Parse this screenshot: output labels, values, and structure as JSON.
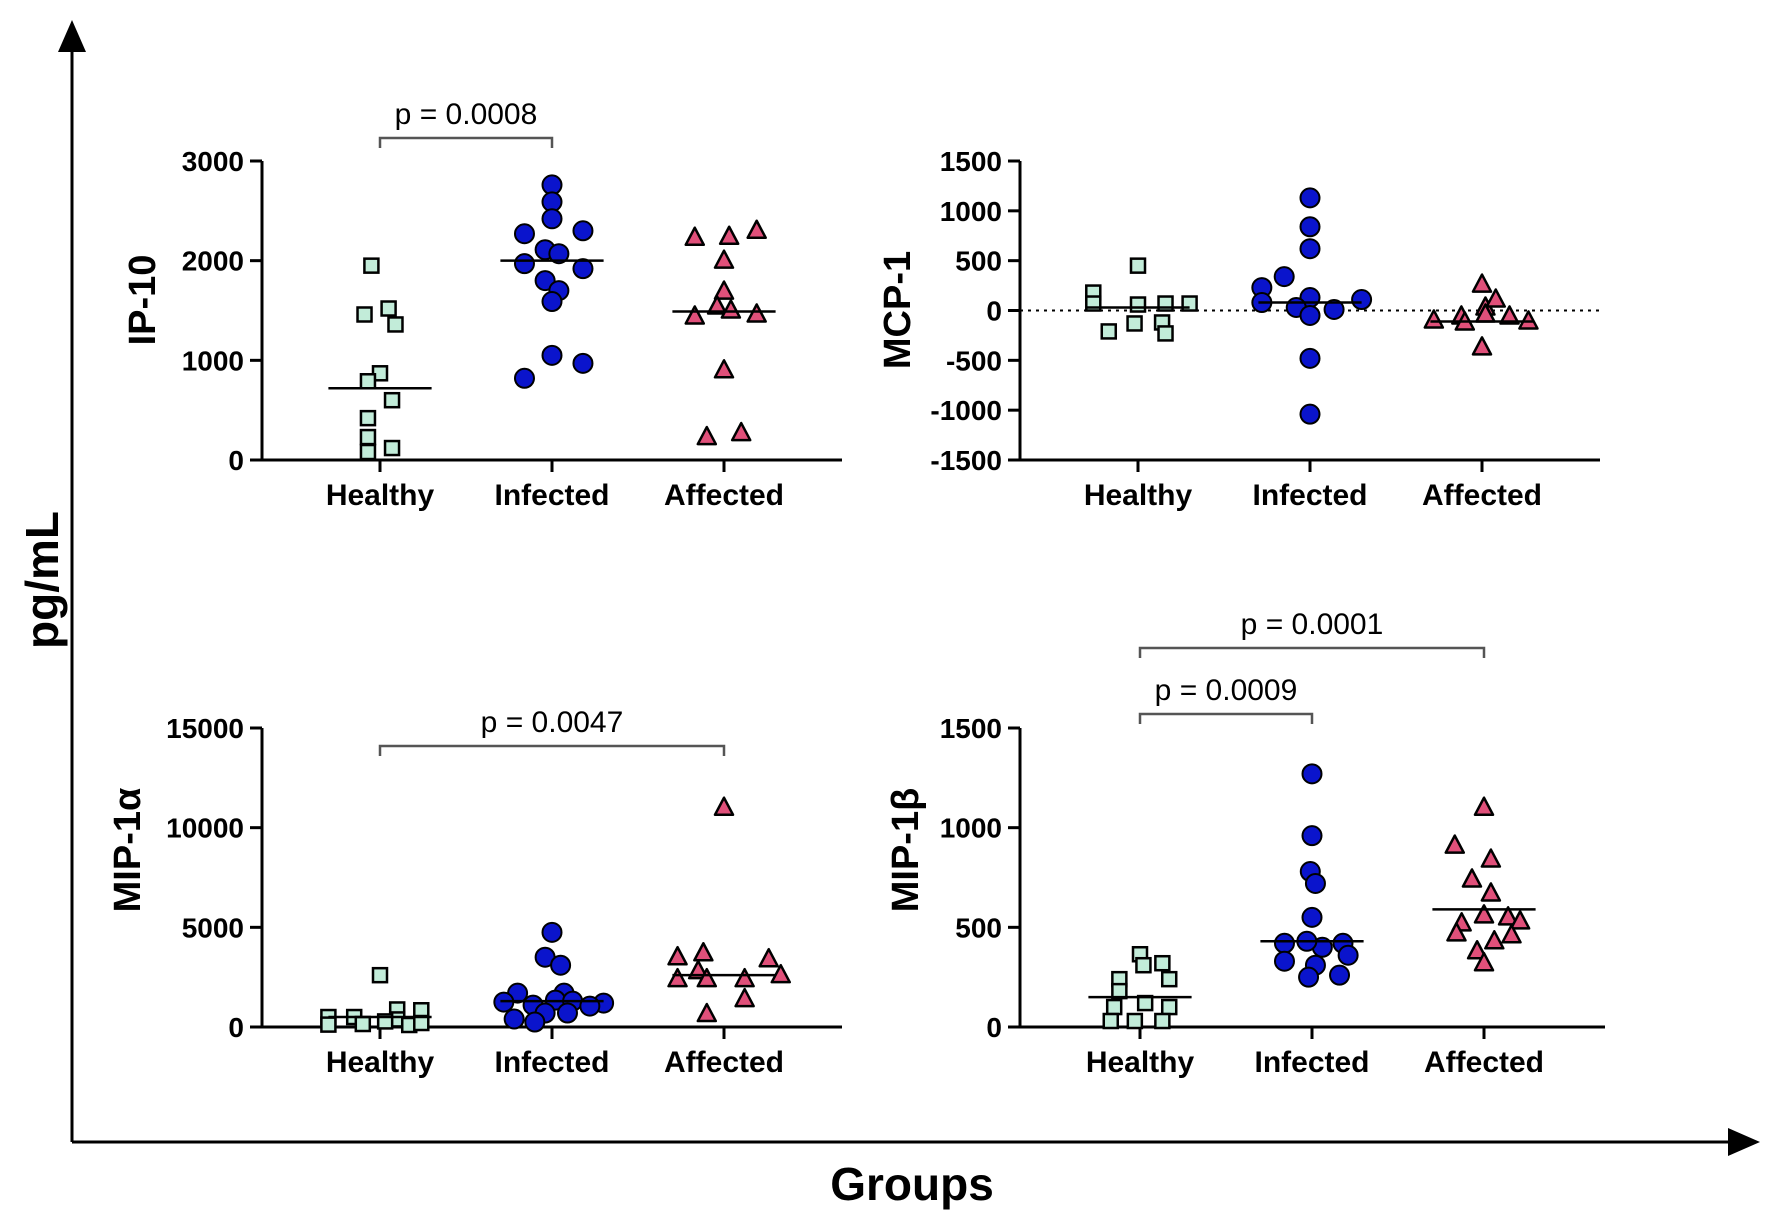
{
  "figure": {
    "ylabel": "pg/mL",
    "xlabel": "Groups"
  },
  "colors": {
    "healthy": "#c2ecd9",
    "infected": "#0a14cc",
    "affected": "#e0507a",
    "axis": "#000000",
    "bracket": "#555555"
  },
  "chart_data": [
    {
      "type": "scatter",
      "title": "",
      "ylabel": "IP-10",
      "xlabel": "",
      "categories": [
        "Healthy",
        "Infected",
        "Affected"
      ],
      "ylim": [
        0,
        3000
      ],
      "yticks": [
        0,
        1000,
        2000,
        3000
      ],
      "zero_line": false,
      "series": [
        {
          "name": "Healthy",
          "marker": "square",
          "points": [
            [
              -0.05,
              1950
            ],
            [
              -0.09,
              1460
            ],
            [
              0.05,
              1520
            ],
            [
              0.09,
              1360
            ],
            [
              0,
              870
            ],
            [
              -0.07,
              790
            ],
            [
              0.07,
              600
            ],
            [
              -0.07,
              420
            ],
            [
              -0.07,
              230
            ],
            [
              -0.07,
              80
            ],
            [
              0.07,
              120
            ]
          ],
          "median": 720
        },
        {
          "name": "Infected",
          "marker": "circle",
          "points": [
            [
              0,
              2760
            ],
            [
              0,
              2590
            ],
            [
              -0.16,
              2270
            ],
            [
              0.18,
              2300
            ],
            [
              0,
              2420
            ],
            [
              -0.04,
              2110
            ],
            [
              0.04,
              2070
            ],
            [
              -0.16,
              1970
            ],
            [
              0.18,
              1920
            ],
            [
              -0.04,
              1800
            ],
            [
              0.04,
              1700
            ],
            [
              0,
              1590
            ],
            [
              0,
              1050
            ],
            [
              -0.16,
              820
            ],
            [
              0.18,
              970
            ]
          ],
          "median": 2000
        },
        {
          "name": "Affected",
          "marker": "triangle",
          "points": [
            [
              -0.17,
              2230
            ],
            [
              0.03,
              2240
            ],
            [
              0.19,
              2300
            ],
            [
              0,
              2000
            ],
            [
              -0.17,
              1440
            ],
            [
              0.19,
              1460
            ],
            [
              0,
              1690
            ],
            [
              -0.04,
              1540
            ],
            [
              0.04,
              1500
            ],
            [
              0,
              900
            ],
            [
              -0.1,
              230
            ],
            [
              0.1,
              270
            ]
          ],
          "median": 1490
        }
      ],
      "annotations": [
        {
          "from": 0,
          "to": 1,
          "text": "p = 0.0008"
        }
      ]
    },
    {
      "type": "scatter",
      "title": "",
      "ylabel": "MCP-1",
      "xlabel": "",
      "categories": [
        "Healthy",
        "Infected",
        "Affected"
      ],
      "ylim": [
        -1500,
        1500
      ],
      "yticks": [
        -1500,
        -1000,
        -500,
        0,
        500,
        1000,
        1500
      ],
      "zero_line": true,
      "series": [
        {
          "name": "Healthy",
          "marker": "square",
          "points": [
            [
              0,
              450
            ],
            [
              -0.26,
              180
            ],
            [
              -0.26,
              70
            ],
            [
              -0.17,
              -210
            ],
            [
              0.16,
              70
            ],
            [
              0.3,
              70
            ],
            [
              0,
              60
            ],
            [
              0.14,
              -120
            ],
            [
              -0.02,
              -130
            ],
            [
              0.16,
              -230
            ]
          ],
          "median": 30
        },
        {
          "name": "Infected",
          "marker": "circle",
          "points": [
            [
              0,
              1130
            ],
            [
              0,
              840
            ],
            [
              0,
              620
            ],
            [
              -0.15,
              340
            ],
            [
              -0.28,
              230
            ],
            [
              0.3,
              110
            ],
            [
              -0.28,
              80
            ],
            [
              0,
              130
            ],
            [
              -0.08,
              30
            ],
            [
              0.14,
              10
            ],
            [
              0,
              -50
            ],
            [
              0,
              -480
            ],
            [
              0,
              -1040
            ]
          ],
          "median": 80
        },
        {
          "name": "Affected",
          "marker": "triangle",
          "points": [
            [
              0,
              260
            ],
            [
              -0.12,
              -60
            ],
            [
              -0.28,
              -100
            ],
            [
              0.02,
              30
            ],
            [
              0.02,
              -40
            ],
            [
              0.16,
              -60
            ],
            [
              0.08,
              110
            ],
            [
              -0.1,
              -120
            ],
            [
              0.27,
              -110
            ],
            [
              0,
              -370
            ]
          ],
          "median": -110
        }
      ],
      "annotations": []
    },
    {
      "type": "scatter",
      "title": "",
      "ylabel": "MIP-1α",
      "xlabel": "",
      "categories": [
        "Healthy",
        "Infected",
        "Affected"
      ],
      "ylim": [
        0,
        15000
      ],
      "yticks": [
        0,
        5000,
        10000,
        15000
      ],
      "zero_line": false,
      "series": [
        {
          "name": "Healthy",
          "marker": "square",
          "points": [
            [
              0,
              2600
            ],
            [
              0.1,
              880
            ],
            [
              0.24,
              840
            ],
            [
              -0.3,
              500
            ],
            [
              -0.15,
              500
            ],
            [
              0.1,
              380
            ],
            [
              -0.3,
              120
            ],
            [
              -0.1,
              150
            ],
            [
              0.17,
              100
            ],
            [
              0.24,
              200
            ],
            [
              0.03,
              280
            ]
          ],
          "median": 500
        },
        {
          "name": "Infected",
          "marker": "circle",
          "points": [
            [
              0,
              4750
            ],
            [
              -0.04,
              3500
            ],
            [
              0.05,
              3100
            ],
            [
              -0.2,
              1700
            ],
            [
              0.07,
              1700
            ],
            [
              -0.28,
              1250
            ],
            [
              0.02,
              1350
            ],
            [
              0.12,
              1300
            ],
            [
              0.3,
              1200
            ],
            [
              -0.11,
              1100
            ],
            [
              0.22,
              1050
            ],
            [
              -0.04,
              700
            ],
            [
              0.09,
              700
            ],
            [
              -0.22,
              400
            ],
            [
              -0.1,
              250
            ]
          ],
          "median": 1300
        },
        {
          "name": "Affected",
          "marker": "triangle",
          "points": [
            [
              0,
              11000
            ],
            [
              -0.12,
              3700
            ],
            [
              0.26,
              3400
            ],
            [
              -0.27,
              3500
            ],
            [
              -0.15,
              2800
            ],
            [
              0.33,
              2600
            ],
            [
              -0.27,
              2400
            ],
            [
              -0.1,
              2400
            ],
            [
              0.12,
              2400
            ],
            [
              0.12,
              1400
            ],
            [
              -0.1,
              650
            ]
          ],
          "median": 2600
        }
      ],
      "annotations": [
        {
          "from": 0,
          "to": 2,
          "text": "p = 0.0047"
        }
      ]
    },
    {
      "type": "scatter",
      "title": "",
      "ylabel": "MIP-1β",
      "xlabel": "",
      "categories": [
        "Healthy",
        "Infected",
        "Affected"
      ],
      "ylim": [
        0,
        1500
      ],
      "yticks": [
        0,
        500,
        1000,
        1500
      ],
      "zero_line": false,
      "series": [
        {
          "name": "Healthy",
          "marker": "square",
          "points": [
            [
              0,
              365
            ],
            [
              0.13,
              320
            ],
            [
              0.02,
              310
            ],
            [
              -0.12,
              240
            ],
            [
              0.17,
              240
            ],
            [
              -0.12,
              180
            ],
            [
              0.03,
              120
            ],
            [
              -0.15,
              100
            ],
            [
              0.17,
              100
            ],
            [
              -0.03,
              30
            ],
            [
              0.13,
              30
            ],
            [
              -0.17,
              30
            ]
          ],
          "median": 150
        },
        {
          "name": "Infected",
          "marker": "circle",
          "points": [
            [
              0,
              1270
            ],
            [
              0,
              960
            ],
            [
              -0.01,
              780
            ],
            [
              0.02,
              720
            ],
            [
              0,
              550
            ],
            [
              -0.16,
              420
            ],
            [
              0.18,
              420
            ],
            [
              0.06,
              400
            ],
            [
              -0.03,
              430
            ],
            [
              -0.16,
              330
            ],
            [
              0.21,
              360
            ],
            [
              0.02,
              310
            ],
            [
              -0.02,
              250
            ],
            [
              0.16,
              260
            ]
          ],
          "median": 430
        },
        {
          "name": "Affected",
          "marker": "triangle",
          "points": [
            [
              0,
              1100
            ],
            [
              -0.17,
              910
            ],
            [
              0.04,
              840
            ],
            [
              -0.07,
              740
            ],
            [
              0.04,
              670
            ],
            [
              0,
              560
            ],
            [
              0.14,
              550
            ],
            [
              -0.13,
              520
            ],
            [
              0.21,
              530
            ],
            [
              -0.16,
              470
            ],
            [
              0.16,
              460
            ],
            [
              0.06,
              430
            ],
            [
              -0.04,
              380
            ],
            [
              0,
              320
            ]
          ],
          "median": 590
        }
      ],
      "annotations": [
        {
          "from": 0,
          "to": 1,
          "text": "p = 0.0009"
        },
        {
          "from": 0,
          "to": 2,
          "text": "p = 0.0001"
        }
      ]
    }
  ]
}
